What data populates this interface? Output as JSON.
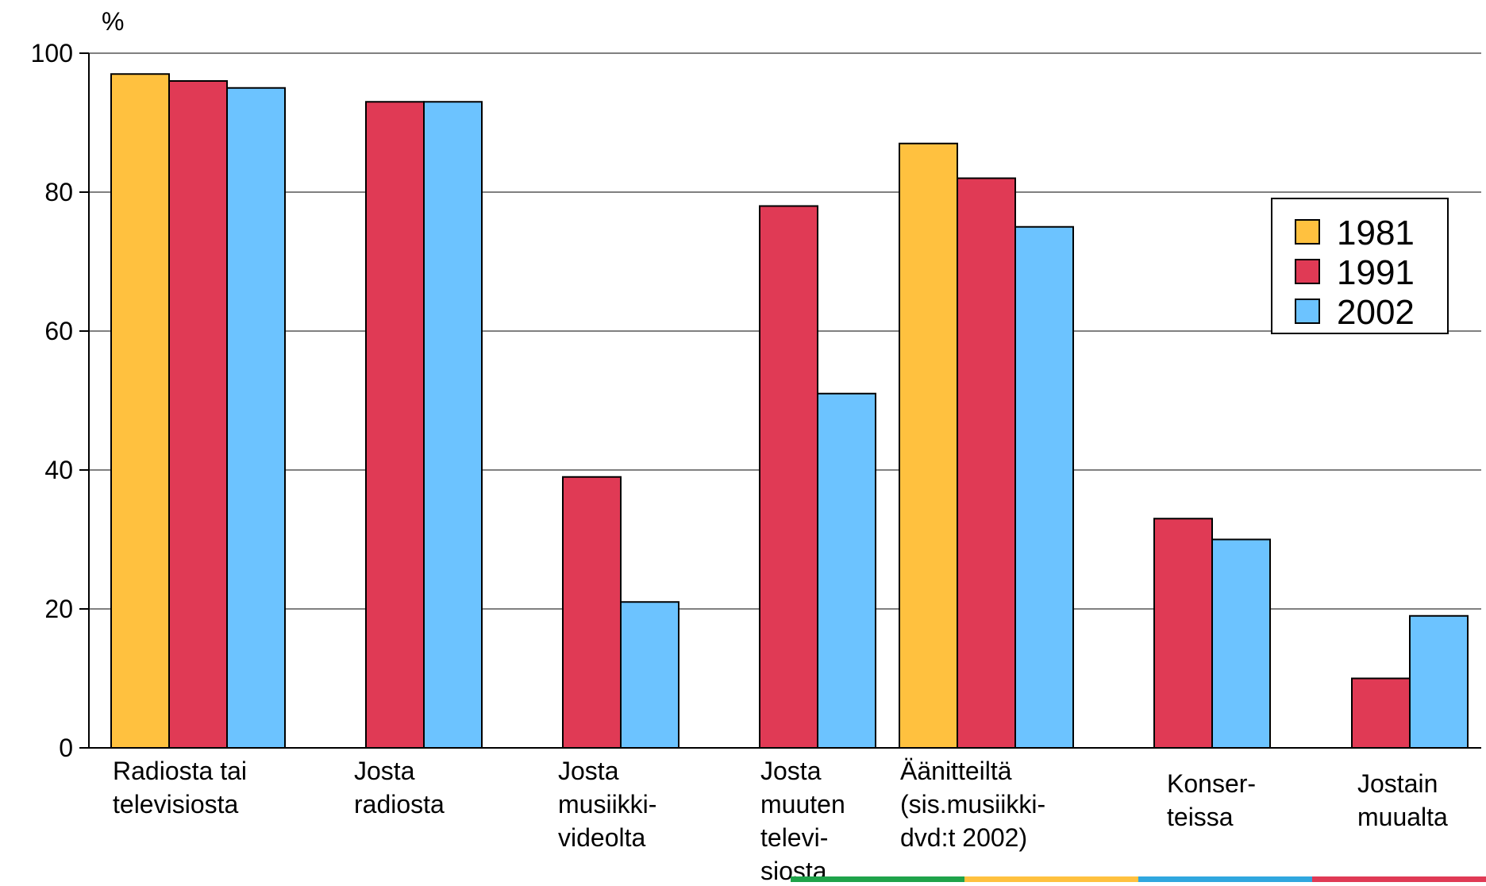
{
  "chart_data": {
    "type": "bar",
    "title": "",
    "ylabel": "%",
    "xlabel": "",
    "ylim": [
      0,
      100
    ],
    "yticks": [
      "0",
      "20",
      "40",
      "60",
      "80",
      "100"
    ],
    "grid": true,
    "legend_position": "right",
    "categories": [
      [
        "Radiosta tai",
        "televisiosta"
      ],
      [
        "Josta",
        "radiosta"
      ],
      [
        "Josta",
        "musiikki-",
        "videolta"
      ],
      [
        "Josta",
        "muuten",
        "televi-",
        "siosta"
      ],
      [
        "Äänitteiltä",
        "(sis.musiikki-",
        "dvd:t 2002)"
      ],
      [
        "Konser-",
        "teissa"
      ],
      [
        "Jostain",
        "muualta"
      ]
    ],
    "series": [
      {
        "name": "1981",
        "color": "#FFC13F",
        "values": [
          97,
          null,
          null,
          null,
          87,
          null,
          null
        ]
      },
      {
        "name": "1991",
        "color": "#E03A55",
        "values": [
          96,
          93,
          39,
          78,
          82,
          33,
          10
        ]
      },
      {
        "name": "2002",
        "color": "#6CC3FF",
        "values": [
          95,
          93,
          21,
          51,
          75,
          30,
          19
        ]
      }
    ]
  },
  "decor": {
    "bottom_stripe_colors": [
      "#1FA34A",
      "#FFC13F",
      "#2FA7DF",
      "#E03A55"
    ]
  }
}
